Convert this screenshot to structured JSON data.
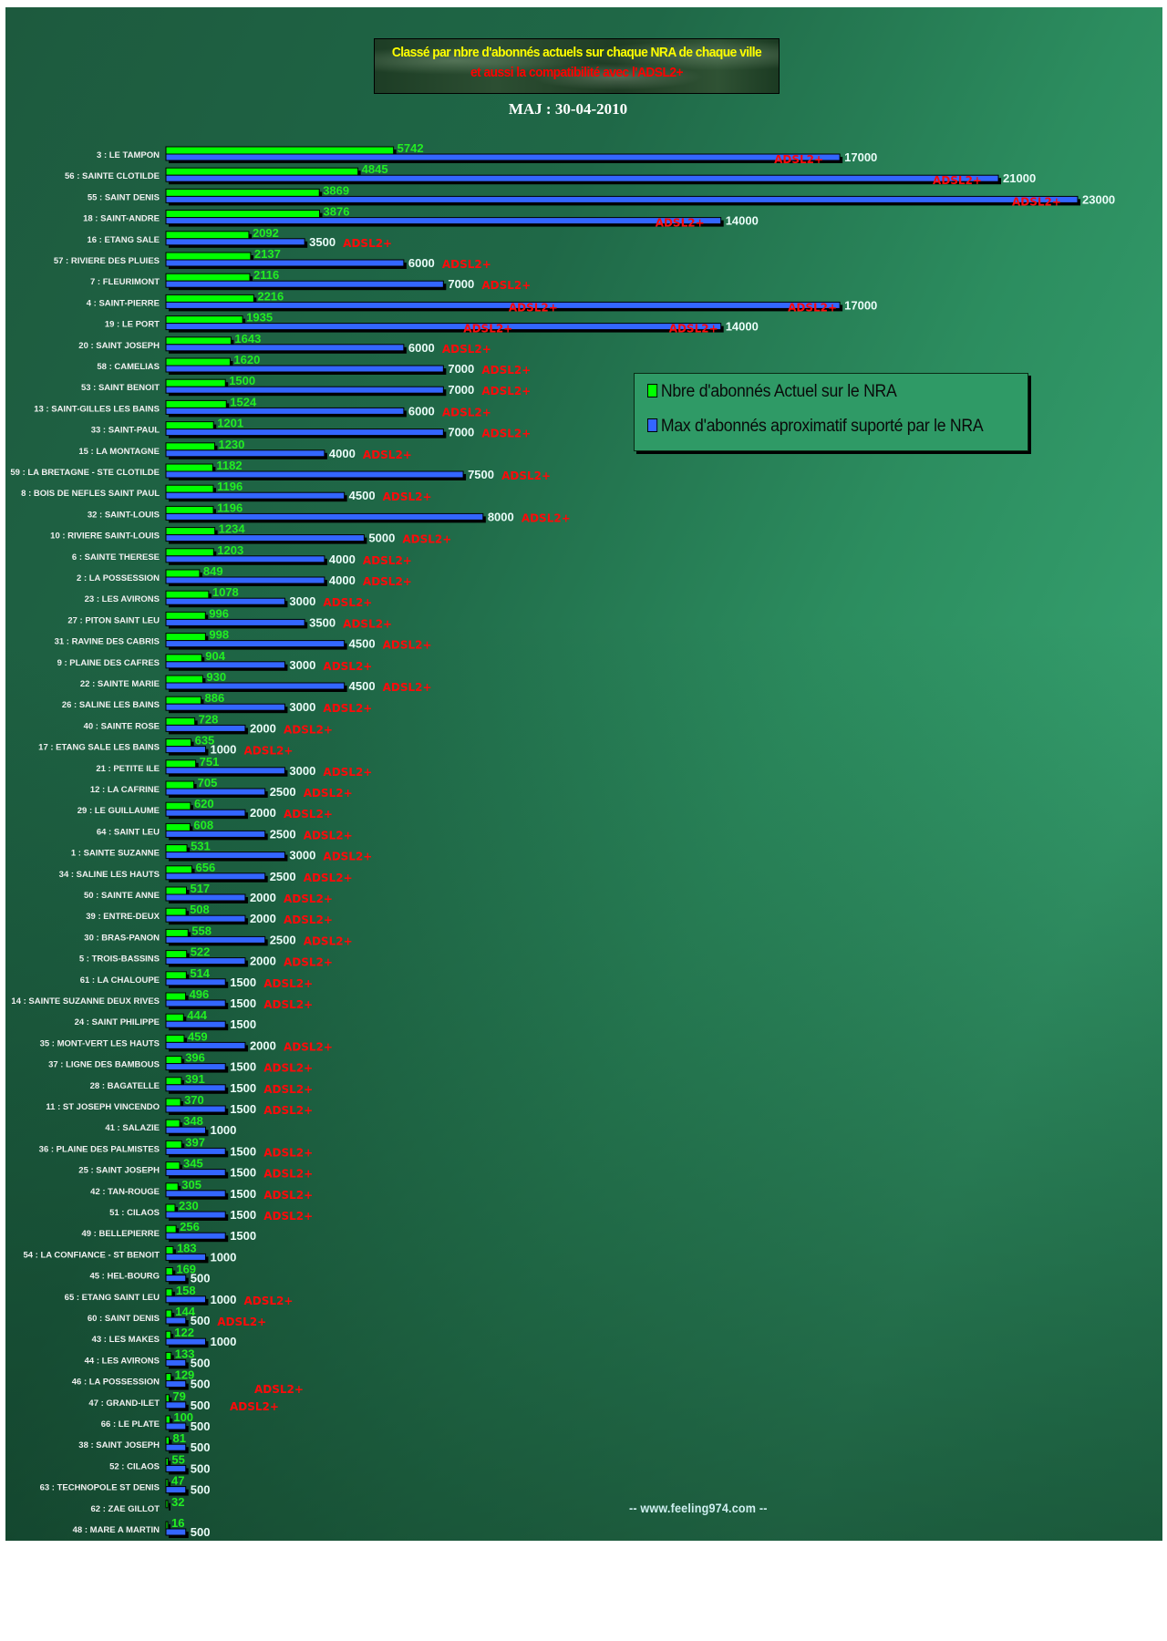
{
  "header": {
    "title_line1": "Classé par nbre d'abonnés actuels sur chaque NRA de chaque ville",
    "title_line2": "et aussi la compatibilité avec l'ADSL2+",
    "update": "MAJ : 30-04-2010"
  },
  "footer": "-- www.feeling974.com --",
  "colors": {
    "current": "#00ff00",
    "max": "#3366ff",
    "adsl": "#ff0000"
  },
  "chart_data": {
    "type": "bar",
    "orientation": "horizontal",
    "title": "Classé par nbre d'abonnés actuels sur chaque NRA de chaque ville",
    "subtitle": "et aussi la compatibilité avec l'ADSL2+",
    "xlim": [
      0,
      23000
    ],
    "grid": false,
    "legend_position": "right",
    "series": [
      {
        "name": "Nbre d'abonnés Actuel sur le NRA",
        "color": "#00ff00"
      },
      {
        "name": "Max d'abonnés aproximatif suporté par le NRA",
        "color": "#3366ff"
      }
    ],
    "adsl_label": "ADSL2+",
    "rows": [
      {
        "label": "3 : LE TAMPON",
        "current": 5742,
        "max": 17000,
        "adsl": "inside"
      },
      {
        "label": "56 : SAINTE CLOTILDE",
        "current": 4845,
        "max": 21000,
        "adsl": "inside"
      },
      {
        "label": "55 : SAINT DENIS",
        "current": 3869,
        "max": 23000,
        "adsl": "inside"
      },
      {
        "label": "18 : SAINT-ANDRE",
        "current": 3876,
        "max": 14000,
        "adsl": "inside"
      },
      {
        "label": "16 : ETANG SALE",
        "current": 2092,
        "max": 3500,
        "adsl": "after"
      },
      {
        "label": "57 : RIVIERE DES PLUIES",
        "current": 2137,
        "max": 6000,
        "adsl": "after"
      },
      {
        "label": "7 : FLEURIMONT",
        "current": 2116,
        "max": 7000,
        "adsl": "after"
      },
      {
        "label": "4 : SAINT-PIERRE",
        "current": 2216,
        "max": 17000,
        "adsl": "double"
      },
      {
        "label": "19 : LE PORT",
        "current": 1935,
        "max": 14000,
        "adsl": "double"
      },
      {
        "label": "20 : SAINT JOSEPH",
        "current": 1643,
        "max": 6000,
        "adsl": "after"
      },
      {
        "label": "58 : CAMELIAS",
        "current": 1620,
        "max": 7000,
        "adsl": "after"
      },
      {
        "label": "53 : SAINT BENOIT",
        "current": 1500,
        "max": 7000,
        "adsl": "after"
      },
      {
        "label": "13 : SAINT-GILLES LES BAINS",
        "current": 1524,
        "max": 6000,
        "adsl": "after"
      },
      {
        "label": "33 : SAINT-PAUL",
        "current": 1201,
        "max": 7000,
        "adsl": "after"
      },
      {
        "label": "15 : LA MONTAGNE",
        "current": 1230,
        "max": 4000,
        "adsl": "after"
      },
      {
        "label": "59 : LA BRETAGNE - STE CLOTILDE",
        "current": 1182,
        "max": 7500,
        "adsl": "after"
      },
      {
        "label": "8 : BOIS DE NEFLES SAINT PAUL",
        "current": 1196,
        "max": 4500,
        "adsl": "after"
      },
      {
        "label": "32 : SAINT-LOUIS",
        "current": 1196,
        "max": 8000,
        "adsl": "after"
      },
      {
        "label": "10 : RIVIERE SAINT-LOUIS",
        "current": 1234,
        "max": 5000,
        "adsl": "after"
      },
      {
        "label": "6 : SAINTE THERESE",
        "current": 1203,
        "max": 4000,
        "adsl": "after"
      },
      {
        "label": "2 : LA POSSESSION",
        "current": 849,
        "max": 4000,
        "adsl": "after"
      },
      {
        "label": "23 : LES AVIRONS",
        "current": 1078,
        "max": 3000,
        "adsl": "after"
      },
      {
        "label": "27 : PITON SAINT LEU",
        "current": 996,
        "max": 3500,
        "adsl": "after"
      },
      {
        "label": "31 : RAVINE DES CABRIS",
        "current": 998,
        "max": 4500,
        "adsl": "after"
      },
      {
        "label": "9 : PLAINE DES CAFRES",
        "current": 904,
        "max": 3000,
        "adsl": "after"
      },
      {
        "label": "22 : SAINTE MARIE",
        "current": 930,
        "max": 4500,
        "adsl": "after"
      },
      {
        "label": "26 : SALINE LES BAINS",
        "current": 886,
        "max": 3000,
        "adsl": "after"
      },
      {
        "label": "40 : SAINTE ROSE",
        "current": 728,
        "max": 2000,
        "adsl": "after"
      },
      {
        "label": "17 : ETANG SALE LES BAINS",
        "current": 635,
        "max": 1000,
        "adsl": "after"
      },
      {
        "label": "21 : PETITE ILE",
        "current": 751,
        "max": 3000,
        "adsl": "after"
      },
      {
        "label": "12 : LA CAFRINE",
        "current": 705,
        "max": 2500,
        "adsl": "after"
      },
      {
        "label": "29 : LE GUILLAUME",
        "current": 620,
        "max": 2000,
        "adsl": "after"
      },
      {
        "label": "64 : SAINT LEU",
        "current": 608,
        "max": 2500,
        "adsl": "after"
      },
      {
        "label": "1 : SAINTE SUZANNE",
        "current": 531,
        "max": 3000,
        "adsl": "after"
      },
      {
        "label": "34 : SALINE LES HAUTS",
        "current": 656,
        "max": 2500,
        "adsl": "after"
      },
      {
        "label": "50 : SAINTE ANNE",
        "current": 517,
        "max": 2000,
        "adsl": "after"
      },
      {
        "label": "39 : ENTRE-DEUX",
        "current": 508,
        "max": 2000,
        "adsl": "after"
      },
      {
        "label": "30 : BRAS-PANON",
        "current": 558,
        "max": 2500,
        "adsl": "after"
      },
      {
        "label": "5 : TROIS-BASSINS",
        "current": 522,
        "max": 2000,
        "adsl": "after"
      },
      {
        "label": "61 : LA CHALOUPE",
        "current": 514,
        "max": 1500,
        "adsl": "after"
      },
      {
        "label": "14 : SAINTE SUZANNE DEUX RIVES",
        "current": 496,
        "max": 1500,
        "adsl": "after"
      },
      {
        "label": "24 : SAINT PHILIPPE",
        "current": 444,
        "max": 1500,
        "adsl": "none"
      },
      {
        "label": "35 : MONT-VERT LES HAUTS",
        "current": 459,
        "max": 2000,
        "adsl": "after"
      },
      {
        "label": "37 : LIGNE DES BAMBOUS",
        "current": 396,
        "max": 1500,
        "adsl": "after"
      },
      {
        "label": "28 : BAGATELLE",
        "current": 391,
        "max": 1500,
        "adsl": "after"
      },
      {
        "label": "11 : ST JOSEPH VINCENDO",
        "current": 370,
        "max": 1500,
        "adsl": "after"
      },
      {
        "label": "41 : SALAZIE",
        "current": 348,
        "max": 1000,
        "adsl": "none"
      },
      {
        "label": "36 : PLAINE DES PALMISTES",
        "current": 397,
        "max": 1500,
        "adsl": "after"
      },
      {
        "label": "25 : SAINT JOSEPH",
        "current": 345,
        "max": 1500,
        "adsl": "after"
      },
      {
        "label": "42 : TAN-ROUGE",
        "current": 305,
        "max": 1500,
        "adsl": "after"
      },
      {
        "label": "51 : CILAOS",
        "current": 230,
        "max": 1500,
        "adsl": "after"
      },
      {
        "label": "49 : BELLEPIERRE",
        "current": 256,
        "max": 1500,
        "adsl": "none"
      },
      {
        "label": "54 : LA CONFIANCE - ST BENOIT",
        "current": 183,
        "max": 1000,
        "adsl": "none"
      },
      {
        "label": "45 : HEL-BOURG",
        "current": 169,
        "max": 500,
        "adsl": "none"
      },
      {
        "label": "65 : ETANG SAINT LEU",
        "current": 158,
        "max": 1000,
        "adsl": "after"
      },
      {
        "label": "60 : SAINT DENIS",
        "current": 144,
        "max": 500,
        "adsl": "after"
      },
      {
        "label": "43 : LES MAKES",
        "current": 122,
        "max": 1000,
        "adsl": "none"
      },
      {
        "label": "44 : LES AVIRONS",
        "current": 133,
        "max": 500,
        "adsl": "none"
      },
      {
        "label": "46 : LA POSSESSION",
        "current": 129,
        "max": 500,
        "adsl": "none"
      },
      {
        "label": "47 : GRAND-ILET",
        "current": 79,
        "max": 500,
        "adsl": "floating"
      },
      {
        "label": "66 : LE PLATE",
        "current": 100,
        "max": 500,
        "adsl": "floating"
      },
      {
        "label": "38 : SAINT JOSEPH",
        "current": 81,
        "max": 500,
        "adsl": "none"
      },
      {
        "label": "52 : CILAOS",
        "current": 55,
        "max": 500,
        "adsl": "none"
      },
      {
        "label": "63 : TECHNOPOLE ST DENIS",
        "current": 47,
        "max": 500,
        "adsl": "none"
      },
      {
        "label": "62 : ZAE GILLOT",
        "current": 32,
        "max": null,
        "adsl": "none"
      },
      {
        "label": "48 : MARE A MARTIN",
        "current": 16,
        "max": 500,
        "adsl": "none"
      }
    ]
  }
}
